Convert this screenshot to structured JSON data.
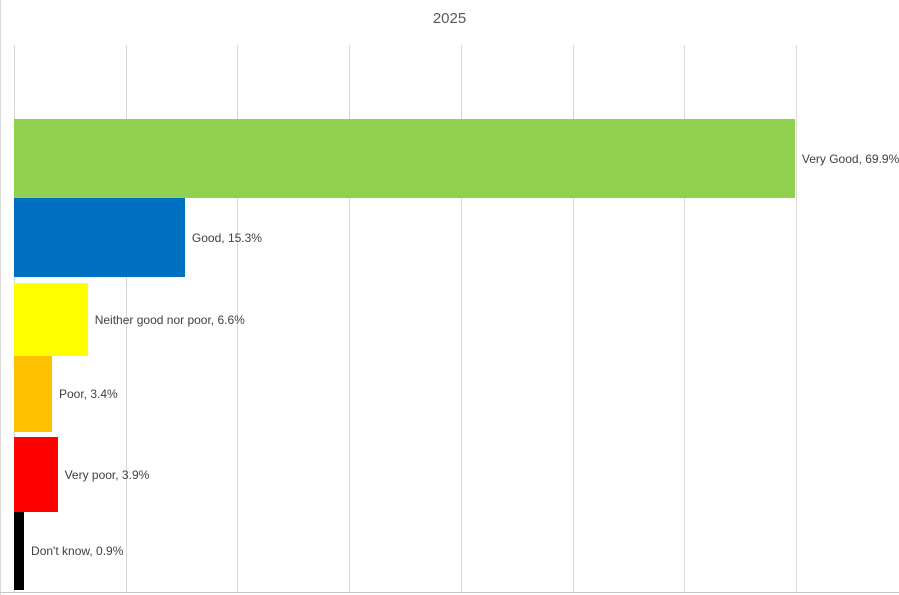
{
  "title": "2025",
  "chart_data": {
    "type": "bar",
    "orientation": "horizontal",
    "title": "2025",
    "categories": [
      "Very Good",
      "Good",
      "Neither good nor poor",
      "Poor",
      "Very poor",
      "Don't know"
    ],
    "values": [
      69.9,
      15.3,
      6.6,
      3.4,
      3.9,
      0.9
    ],
    "unit": "%",
    "points": [
      {
        "category": "Very Good",
        "value": 69.9,
        "color": "#92D050",
        "label_text": "Very Good, 69.9%"
      },
      {
        "category": "Good",
        "value": 15.3,
        "color": "#0070C0",
        "label_text": "Good, 15.3%"
      },
      {
        "category": "Neither good nor poor",
        "value": 6.6,
        "color": "#FFFF00",
        "label_text": "Neither good nor poor, 6.6%"
      },
      {
        "category": "Poor",
        "value": 3.4,
        "color": "#FFC000",
        "label_text": "Poor, 3.4%"
      },
      {
        "category": "Very poor",
        "value": 3.9,
        "color": "#FF0000",
        "label_text": "Very poor, 3.9%"
      },
      {
        "category": "Don't know",
        "value": 0.9,
        "color": "#000000",
        "label_text": "Don't know, 0.9%"
      }
    ],
    "xlabel": "",
    "ylabel": "",
    "xlim": [
      0,
      70
    ],
    "gridline_step": 10,
    "grid": "vertical-gridlines-on",
    "legend": "none",
    "axis_tick_labels_visible": false,
    "label_position": "outside-end",
    "style_colors": {
      "title_color": "#595959",
      "data_label_color": "#404040",
      "gridline_color": "#D9D9D9",
      "axis_line_color": "#BFBFBF",
      "chart_border_color": "#D9D9D9",
      "background": "#FFFFFF"
    }
  }
}
